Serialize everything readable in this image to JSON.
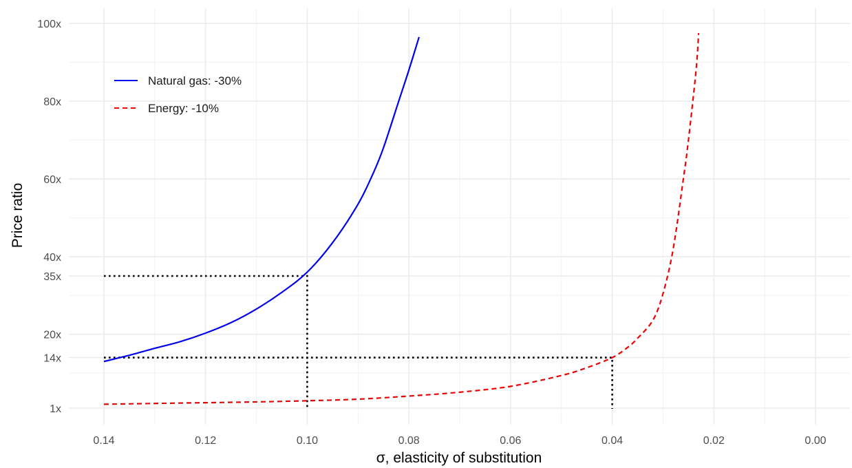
{
  "chart_data": {
    "type": "line",
    "xlabel": "σ, elasticity of substitution",
    "ylabel": "Price ratio",
    "x_reversed": true,
    "xlim": [
      0.14,
      0.0
    ],
    "x_ticks": [
      0.14,
      0.12,
      0.1,
      0.08,
      0.06,
      0.04,
      0.02,
      0.0
    ],
    "x_tick_labels": [
      "0.14",
      "0.12",
      "0.10",
      "0.08",
      "0.06",
      "0.04",
      "0.02",
      "0.00"
    ],
    "x_minor_ticks": [
      0.13,
      0.11,
      0.09,
      0.07,
      0.05,
      0.03,
      0.01
    ],
    "y_ticks": [
      1,
      14,
      20,
      35,
      40,
      60,
      80,
      100
    ],
    "y_tick_labels": [
      "1x",
      "14x",
      "20x",
      "35x",
      "40x",
      "60x",
      "80x",
      "100x"
    ],
    "y_minor_ticks": [
      10,
      30,
      50,
      70,
      90
    ],
    "grid": true,
    "legend_position": "top-left",
    "series": [
      {
        "name": "Natural gas: -30%",
        "color": "#0000ee",
        "dash": "solid",
        "x": [
          0.14,
          0.135,
          0.13,
          0.125,
          0.12,
          0.115,
          0.11,
          0.105,
          0.1,
          0.095,
          0.09,
          0.087,
          0.085,
          0.082,
          0.08,
          0.078
        ],
        "y": [
          13.0,
          14.6,
          16.4,
          18.1,
          20.3,
          23.0,
          26.5,
          30.8,
          36.0,
          43.6,
          53.5,
          61.5,
          68.0,
          80.0,
          88.0,
          96.5
        ]
      },
      {
        "name": "Energy: -10%",
        "color": "#ee0000",
        "dash": "dashed",
        "x": [
          0.14,
          0.13,
          0.12,
          0.11,
          0.1,
          0.09,
          0.08,
          0.07,
          0.06,
          0.05,
          0.045,
          0.04,
          0.037,
          0.035,
          0.032,
          0.03,
          0.028,
          0.026,
          0.025,
          0.0235,
          0.023
        ],
        "y": [
          2.0,
          2.2,
          2.4,
          2.6,
          2.9,
          3.3,
          4.1,
          5.1,
          6.6,
          9.4,
          11.4,
          14.0,
          16.6,
          19.0,
          23.6,
          30.5,
          42.0,
          60.0,
          70.0,
          88.0,
          97.5
        ]
      }
    ],
    "reference_lines": [
      {
        "points": [
          [
            0.14,
            35
          ],
          [
            0.1,
            35
          ],
          [
            0.1,
            0
          ]
        ]
      },
      {
        "points": [
          [
            0.14,
            14
          ],
          [
            0.04,
            14
          ],
          [
            0.04,
            0
          ]
        ]
      }
    ]
  }
}
